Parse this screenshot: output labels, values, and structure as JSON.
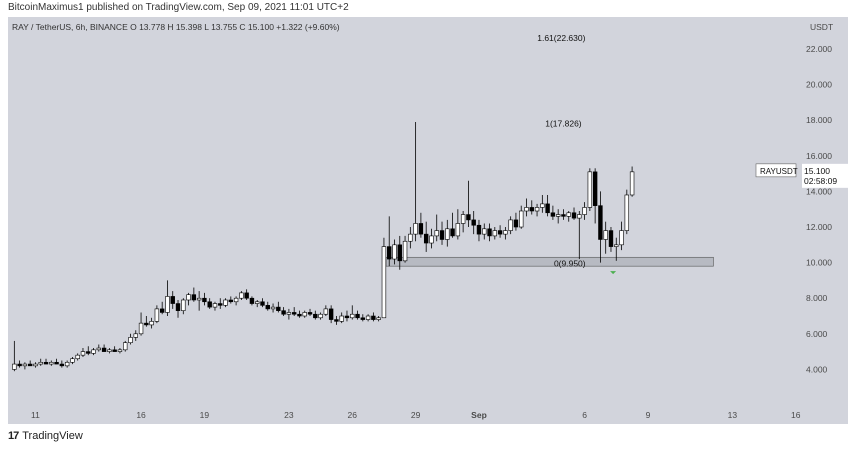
{
  "header": {
    "published_by": "BitcoinMaximus1 published on TradingView.com, Sep 09, 2021 11:01 UTC+2"
  },
  "footer": {
    "brand": "TradingView",
    "logo_icon": "tradingview-logo-icon"
  },
  "chart_data": {
    "type": "candlestick",
    "symbol_line": {
      "pair": "RAY / TetherUS, 6h, BINANCE",
      "o_label": "O",
      "o": "13.778",
      "h_label": "H",
      "h": "15.398",
      "l_label": "L",
      "l": "13.755",
      "c_label": "C",
      "c": "15.100",
      "change": "+1.322 (+9.60%)"
    },
    "currency": "USDT",
    "ylim": [
      2.0,
      23.8
    ],
    "y_ticks": [
      "4.000",
      "6.000",
      "8.000",
      "10.000",
      "12.000",
      "14.000",
      "16.000",
      "18.000",
      "20.000",
      "22.000"
    ],
    "x_ticks": [
      {
        "label": "11",
        "t": 11
      },
      {
        "label": "16",
        "t": 16
      },
      {
        "label": "19",
        "t": 19
      },
      {
        "label": "23",
        "t": 23
      },
      {
        "label": "26",
        "t": 26
      },
      {
        "label": "29",
        "t": 29
      },
      {
        "label": "Sep",
        "t": 32
      },
      {
        "label": "6",
        "t": 37
      },
      {
        "label": "9",
        "t": 40
      },
      {
        "label": "13",
        "t": 44
      },
      {
        "label": "16",
        "t": 47
      }
    ],
    "xlim": [
      9.7,
      47.2
    ],
    "candle_width_days": 0.25,
    "candles": [
      {
        "t": 10.0,
        "o": 4.0,
        "h": 5.6,
        "l": 3.9,
        "c": 4.3
      },
      {
        "t": 10.25,
        "o": 4.3,
        "h": 4.5,
        "l": 4.1,
        "c": 4.2
      },
      {
        "t": 10.5,
        "o": 4.2,
        "h": 4.4,
        "l": 4.0,
        "c": 4.3
      },
      {
        "t": 10.75,
        "o": 4.3,
        "h": 4.5,
        "l": 4.2,
        "c": 4.2
      },
      {
        "t": 11.0,
        "o": 4.2,
        "h": 4.4,
        "l": 4.1,
        "c": 4.3
      },
      {
        "t": 11.25,
        "o": 4.3,
        "h": 4.6,
        "l": 4.2,
        "c": 4.4
      },
      {
        "t": 11.5,
        "o": 4.4,
        "h": 4.6,
        "l": 4.3,
        "c": 4.3
      },
      {
        "t": 11.75,
        "o": 4.3,
        "h": 4.5,
        "l": 4.2,
        "c": 4.4
      },
      {
        "t": 12.0,
        "o": 4.4,
        "h": 4.6,
        "l": 4.3,
        "c": 4.3
      },
      {
        "t": 12.25,
        "o": 4.3,
        "h": 4.5,
        "l": 4.1,
        "c": 4.2
      },
      {
        "t": 12.5,
        "o": 4.2,
        "h": 4.5,
        "l": 4.1,
        "c": 4.4
      },
      {
        "t": 12.75,
        "o": 4.4,
        "h": 4.7,
        "l": 4.3,
        "c": 4.6
      },
      {
        "t": 13.0,
        "o": 4.6,
        "h": 4.9,
        "l": 4.5,
        "c": 4.8
      },
      {
        "t": 13.25,
        "o": 4.8,
        "h": 5.2,
        "l": 4.7,
        "c": 5.0
      },
      {
        "t": 13.5,
        "o": 5.0,
        "h": 5.3,
        "l": 4.8,
        "c": 4.9
      },
      {
        "t": 13.75,
        "o": 4.9,
        "h": 5.2,
        "l": 4.8,
        "c": 5.1
      },
      {
        "t": 14.0,
        "o": 5.1,
        "h": 5.4,
        "l": 5.0,
        "c": 5.2
      },
      {
        "t": 14.25,
        "o": 5.2,
        "h": 5.4,
        "l": 5.0,
        "c": 5.0
      },
      {
        "t": 14.5,
        "o": 5.0,
        "h": 5.2,
        "l": 4.9,
        "c": 5.1
      },
      {
        "t": 14.75,
        "o": 5.1,
        "h": 5.3,
        "l": 5.0,
        "c": 5.0
      },
      {
        "t": 15.0,
        "o": 5.0,
        "h": 5.2,
        "l": 4.9,
        "c": 5.1
      },
      {
        "t": 15.25,
        "o": 5.1,
        "h": 5.6,
        "l": 5.0,
        "c": 5.5
      },
      {
        "t": 15.5,
        "o": 5.5,
        "h": 6.0,
        "l": 5.4,
        "c": 5.8
      },
      {
        "t": 15.75,
        "o": 5.8,
        "h": 6.2,
        "l": 5.6,
        "c": 6.0
      },
      {
        "t": 16.0,
        "o": 6.0,
        "h": 7.2,
        "l": 5.9,
        "c": 6.6
      },
      {
        "t": 16.25,
        "o": 6.6,
        "h": 7.0,
        "l": 6.4,
        "c": 6.5
      },
      {
        "t": 16.5,
        "o": 6.5,
        "h": 6.9,
        "l": 6.3,
        "c": 6.7
      },
      {
        "t": 16.75,
        "o": 6.7,
        "h": 7.6,
        "l": 6.6,
        "c": 7.4
      },
      {
        "t": 17.0,
        "o": 7.4,
        "h": 7.8,
        "l": 7.1,
        "c": 7.2
      },
      {
        "t": 17.25,
        "o": 7.2,
        "h": 9.0,
        "l": 7.0,
        "c": 8.1
      },
      {
        "t": 17.5,
        "o": 8.1,
        "h": 8.4,
        "l": 7.4,
        "c": 7.7
      },
      {
        "t": 17.75,
        "o": 7.7,
        "h": 7.9,
        "l": 6.9,
        "c": 7.3
      },
      {
        "t": 18.0,
        "o": 7.3,
        "h": 8.0,
        "l": 7.1,
        "c": 7.9
      },
      {
        "t": 18.25,
        "o": 7.9,
        "h": 8.3,
        "l": 7.6,
        "c": 8.2
      },
      {
        "t": 18.5,
        "o": 8.2,
        "h": 8.6,
        "l": 7.8,
        "c": 7.9
      },
      {
        "t": 18.75,
        "o": 7.9,
        "h": 8.4,
        "l": 7.3,
        "c": 8.0
      },
      {
        "t": 19.0,
        "o": 8.0,
        "h": 8.3,
        "l": 7.6,
        "c": 7.8
      },
      {
        "t": 19.25,
        "o": 7.8,
        "h": 8.0,
        "l": 7.4,
        "c": 7.5
      },
      {
        "t": 19.5,
        "o": 7.5,
        "h": 7.8,
        "l": 7.3,
        "c": 7.7
      },
      {
        "t": 19.75,
        "o": 7.7,
        "h": 8.0,
        "l": 7.4,
        "c": 7.6
      },
      {
        "t": 20.0,
        "o": 7.6,
        "h": 8.0,
        "l": 7.5,
        "c": 7.9
      },
      {
        "t": 20.25,
        "o": 7.9,
        "h": 8.1,
        "l": 7.7,
        "c": 7.8
      },
      {
        "t": 20.5,
        "o": 7.8,
        "h": 8.1,
        "l": 7.6,
        "c": 8.0
      },
      {
        "t": 20.75,
        "o": 8.0,
        "h": 8.4,
        "l": 7.9,
        "c": 8.3
      },
      {
        "t": 21.0,
        "o": 8.3,
        "h": 8.5,
        "l": 7.9,
        "c": 8.0
      },
      {
        "t": 21.25,
        "o": 8.0,
        "h": 8.1,
        "l": 7.6,
        "c": 7.7
      },
      {
        "t": 21.5,
        "o": 7.7,
        "h": 7.9,
        "l": 7.5,
        "c": 7.8
      },
      {
        "t": 21.75,
        "o": 7.8,
        "h": 8.0,
        "l": 7.5,
        "c": 7.6
      },
      {
        "t": 22.0,
        "o": 7.6,
        "h": 7.8,
        "l": 7.3,
        "c": 7.4
      },
      {
        "t": 22.25,
        "o": 7.4,
        "h": 7.7,
        "l": 7.2,
        "c": 7.5
      },
      {
        "t": 22.5,
        "o": 7.5,
        "h": 7.8,
        "l": 7.2,
        "c": 7.3
      },
      {
        "t": 22.75,
        "o": 7.3,
        "h": 7.5,
        "l": 7.0,
        "c": 7.1
      },
      {
        "t": 23.0,
        "o": 7.1,
        "h": 7.4,
        "l": 6.8,
        "c": 7.2
      },
      {
        "t": 23.25,
        "o": 7.2,
        "h": 7.5,
        "l": 7.0,
        "c": 7.1
      },
      {
        "t": 23.5,
        "o": 7.1,
        "h": 7.3,
        "l": 6.9,
        "c": 7.0
      },
      {
        "t": 23.75,
        "o": 7.0,
        "h": 7.3,
        "l": 6.9,
        "c": 7.2
      },
      {
        "t": 24.0,
        "o": 7.2,
        "h": 7.4,
        "l": 7.0,
        "c": 7.1
      },
      {
        "t": 24.25,
        "o": 7.1,
        "h": 7.3,
        "l": 6.8,
        "c": 6.9
      },
      {
        "t": 24.5,
        "o": 6.9,
        "h": 7.2,
        "l": 6.8,
        "c": 7.1
      },
      {
        "t": 24.75,
        "o": 7.1,
        "h": 7.6,
        "l": 7.0,
        "c": 7.4
      },
      {
        "t": 25.0,
        "o": 7.4,
        "h": 7.6,
        "l": 6.6,
        "c": 6.8
      },
      {
        "t": 25.25,
        "o": 6.8,
        "h": 7.0,
        "l": 6.5,
        "c": 6.7
      },
      {
        "t": 25.5,
        "o": 6.7,
        "h": 7.2,
        "l": 6.6,
        "c": 7.0
      },
      {
        "t": 25.75,
        "o": 7.0,
        "h": 7.3,
        "l": 6.7,
        "c": 6.9
      },
      {
        "t": 26.0,
        "o": 6.9,
        "h": 7.6,
        "l": 6.8,
        "c": 7.1
      },
      {
        "t": 26.25,
        "o": 7.1,
        "h": 7.3,
        "l": 6.8,
        "c": 6.9
      },
      {
        "t": 26.5,
        "o": 6.9,
        "h": 7.1,
        "l": 6.7,
        "c": 6.8
      },
      {
        "t": 26.75,
        "o": 6.8,
        "h": 7.1,
        "l": 6.7,
        "c": 7.0
      },
      {
        "t": 27.0,
        "o": 7.0,
        "h": 7.2,
        "l": 6.7,
        "c": 6.8
      },
      {
        "t": 27.25,
        "o": 6.8,
        "h": 7.0,
        "l": 6.7,
        "c": 6.9
      },
      {
        "t": 27.5,
        "o": 6.9,
        "h": 11.4,
        "l": 6.9,
        "c": 10.9
      },
      {
        "t": 27.75,
        "o": 10.9,
        "h": 12.6,
        "l": 9.8,
        "c": 10.2
      },
      {
        "t": 28.0,
        "o": 10.2,
        "h": 11.3,
        "l": 9.9,
        "c": 11.0
      },
      {
        "t": 28.25,
        "o": 11.0,
        "h": 11.5,
        "l": 9.6,
        "c": 10.1
      },
      {
        "t": 28.5,
        "o": 10.1,
        "h": 11.5,
        "l": 10.0,
        "c": 11.2
      },
      {
        "t": 28.75,
        "o": 11.2,
        "h": 12.0,
        "l": 10.8,
        "c": 11.6
      },
      {
        "t": 29.0,
        "o": 11.6,
        "h": 17.9,
        "l": 11.2,
        "c": 12.2
      },
      {
        "t": 29.25,
        "o": 12.2,
        "h": 12.8,
        "l": 11.4,
        "c": 11.6
      },
      {
        "t": 29.5,
        "o": 11.6,
        "h": 12.3,
        "l": 10.6,
        "c": 11.1
      },
      {
        "t": 29.75,
        "o": 11.1,
        "h": 11.9,
        "l": 10.8,
        "c": 11.5
      },
      {
        "t": 30.0,
        "o": 11.5,
        "h": 12.7,
        "l": 11.2,
        "c": 11.8
      },
      {
        "t": 30.25,
        "o": 11.8,
        "h": 12.3,
        "l": 11.0,
        "c": 11.3
      },
      {
        "t": 30.5,
        "o": 11.3,
        "h": 12.4,
        "l": 10.9,
        "c": 11.9
      },
      {
        "t": 30.75,
        "o": 11.9,
        "h": 12.8,
        "l": 11.4,
        "c": 11.5
      },
      {
        "t": 31.0,
        "o": 11.5,
        "h": 13.0,
        "l": 11.3,
        "c": 12.2
      },
      {
        "t": 31.25,
        "o": 12.2,
        "h": 12.9,
        "l": 11.7,
        "c": 12.7
      },
      {
        "t": 31.5,
        "o": 12.7,
        "h": 14.6,
        "l": 12.0,
        "c": 12.4
      },
      {
        "t": 31.75,
        "o": 12.4,
        "h": 12.9,
        "l": 11.6,
        "c": 12.1
      },
      {
        "t": 32.0,
        "o": 12.1,
        "h": 12.4,
        "l": 11.2,
        "c": 11.6
      },
      {
        "t": 32.25,
        "o": 11.6,
        "h": 12.2,
        "l": 11.3,
        "c": 11.9
      },
      {
        "t": 32.5,
        "o": 11.9,
        "h": 12.2,
        "l": 11.2,
        "c": 11.5
      },
      {
        "t": 32.75,
        "o": 11.5,
        "h": 12.0,
        "l": 11.3,
        "c": 11.8
      },
      {
        "t": 33.0,
        "o": 11.8,
        "h": 12.1,
        "l": 11.4,
        "c": 11.6
      },
      {
        "t": 33.25,
        "o": 11.6,
        "h": 12.0,
        "l": 11.3,
        "c": 11.8
      },
      {
        "t": 33.5,
        "o": 11.8,
        "h": 12.6,
        "l": 11.6,
        "c": 12.4
      },
      {
        "t": 33.75,
        "o": 12.4,
        "h": 12.8,
        "l": 11.8,
        "c": 12.0
      },
      {
        "t": 34.0,
        "o": 12.0,
        "h": 13.2,
        "l": 11.9,
        "c": 12.9
      },
      {
        "t": 34.25,
        "o": 12.9,
        "h": 13.6,
        "l": 12.6,
        "c": 13.1
      },
      {
        "t": 34.5,
        "o": 13.1,
        "h": 13.5,
        "l": 12.7,
        "c": 12.9
      },
      {
        "t": 34.75,
        "o": 12.9,
        "h": 13.3,
        "l": 12.6,
        "c": 13.1
      },
      {
        "t": 35.0,
        "o": 13.1,
        "h": 13.8,
        "l": 12.8,
        "c": 13.3
      },
      {
        "t": 35.25,
        "o": 13.3,
        "h": 13.8,
        "l": 12.6,
        "c": 12.8
      },
      {
        "t": 35.5,
        "o": 12.8,
        "h": 13.2,
        "l": 12.4,
        "c": 12.6
      },
      {
        "t": 35.75,
        "o": 12.6,
        "h": 13.0,
        "l": 12.2,
        "c": 12.7
      },
      {
        "t": 36.0,
        "o": 12.7,
        "h": 13.0,
        "l": 12.4,
        "c": 12.6
      },
      {
        "t": 36.25,
        "o": 12.6,
        "h": 12.9,
        "l": 12.3,
        "c": 12.8
      },
      {
        "t": 36.5,
        "o": 12.8,
        "h": 13.1,
        "l": 12.4,
        "c": 12.5
      },
      {
        "t": 36.75,
        "o": 12.5,
        "h": 12.9,
        "l": 10.2,
        "c": 12.7
      },
      {
        "t": 37.0,
        "o": 12.7,
        "h": 13.4,
        "l": 12.4,
        "c": 13.1
      },
      {
        "t": 37.25,
        "o": 13.1,
        "h": 15.3,
        "l": 12.9,
        "c": 15.1
      },
      {
        "t": 37.5,
        "o": 15.1,
        "h": 15.3,
        "l": 12.2,
        "c": 13.2
      },
      {
        "t": 37.75,
        "o": 13.2,
        "h": 14.0,
        "l": 10.0,
        "c": 11.3
      },
      {
        "t": 38.0,
        "o": 11.3,
        "h": 12.3,
        "l": 10.5,
        "c": 11.8
      },
      {
        "t": 38.25,
        "o": 11.8,
        "h": 12.0,
        "l": 10.6,
        "c": 10.9
      },
      {
        "t": 38.5,
        "o": 10.9,
        "h": 11.4,
        "l": 10.1,
        "c": 11.0
      },
      {
        "t": 38.75,
        "o": 11.0,
        "h": 12.3,
        "l": 10.7,
        "c": 11.8
      },
      {
        "t": 39.0,
        "o": 11.8,
        "h": 14.1,
        "l": 11.6,
        "c": 13.8
      },
      {
        "t": 39.25,
        "o": 13.8,
        "h": 15.4,
        "l": 13.7,
        "c": 15.1
      }
    ],
    "support_zone": {
      "from_t": 27.6,
      "to_t": 43.1,
      "low": 9.8,
      "high": 10.3,
      "color": "#b7bac2"
    },
    "fib_levels": [
      {
        "label": "1.61(22.630)",
        "value": 22.63,
        "t": 35.9
      },
      {
        "label": "1(17.826)",
        "value": 17.826,
        "t": 36.0
      },
      {
        "label": "0(9.950)",
        "value": 9.95,
        "t": 36.3
      }
    ],
    "marker": {
      "t": 38.35,
      "value": 9.8,
      "color": "#4caf50"
    },
    "price_tag": {
      "label": "RAYUSDT",
      "price": "15.100",
      "countdown": "02:58:09"
    },
    "colors": {
      "background": "#d2d4dc",
      "up": "#ffffff",
      "down": "#000000",
      "wick": "#000000",
      "axis_text": "#4a4a4a"
    }
  }
}
